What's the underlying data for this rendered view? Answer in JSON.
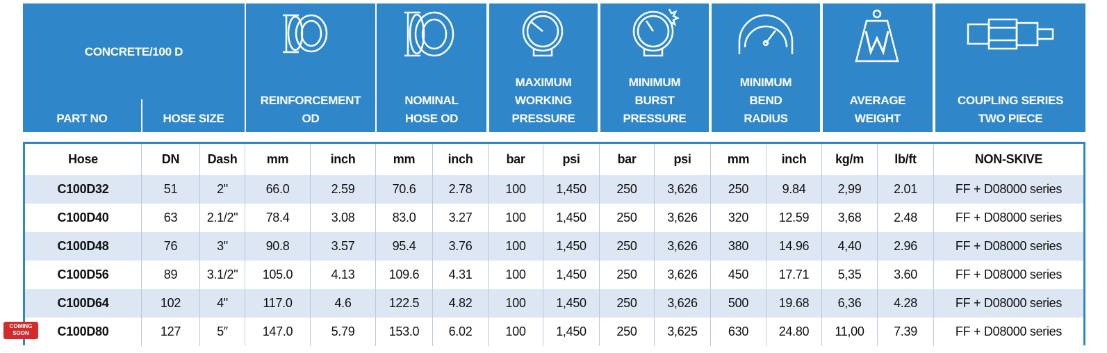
{
  "header": {
    "title": "CONCRETE/100 D",
    "columns": [
      [
        "PART NO"
      ],
      [
        "HOSE SIZE"
      ],
      [
        "REINFORCEMENT",
        "OD"
      ],
      [
        "NOMINAL",
        "HOSE OD"
      ],
      [
        "MAXIMUM",
        "WORKING",
        "PRESSURE"
      ],
      [
        "MINIMUM",
        "BURST",
        "PRESSURE"
      ],
      [
        "MINIMUM",
        "BEND",
        "RADIUS"
      ],
      [
        "AVERAGE",
        "WEIGHT"
      ],
      [
        "COUPLING SERIES",
        "TWO PIECE"
      ]
    ]
  },
  "table": {
    "units": [
      "Hose",
      "DN",
      "Dash",
      "mm",
      "inch",
      "mm",
      "inch",
      "bar",
      "psi",
      "bar",
      "psi",
      "mm",
      "inch",
      "kg/m",
      "lb/ft",
      "NON-SKIVE"
    ],
    "rows": [
      [
        "C100D32",
        "51",
        "2\"",
        "66.0",
        "2.59",
        "70.6",
        "2.78",
        "100",
        "1,450",
        "250",
        "3,626",
        "250",
        "9.84",
        "2,99",
        "2.01",
        "FF + D08000 series"
      ],
      [
        "C100D40",
        "63",
        "2.1/2\"",
        "78.4",
        "3.08",
        "83.0",
        "3.27",
        "100",
        "1,450",
        "250",
        "3,626",
        "320",
        "12.59",
        "3,68",
        "2.48",
        "FF + D08000 series"
      ],
      [
        "C100D48",
        "76",
        "3\"",
        "90.8",
        "3.57",
        "95.4",
        "3.76",
        "100",
        "1,450",
        "250",
        "3,626",
        "380",
        "14.96",
        "4,40",
        "2.96",
        "FF + D08000 series"
      ],
      [
        "C100D56",
        "89",
        "3.1/2\"",
        "105.0",
        "4.13",
        "109.6",
        "4.31",
        "100",
        "1,450",
        "250",
        "3,626",
        "450",
        "17.71",
        "5,35",
        "3.60",
        "FF + D08000 series"
      ],
      [
        "C100D64",
        "102",
        "4\"",
        "117.0",
        "4.6",
        "122.5",
        "4.82",
        "100",
        "1,450",
        "250",
        "3,626",
        "500",
        "19.68",
        "6,36",
        "4.28",
        "FF + D08000 series"
      ],
      [
        "C100D80",
        "127",
        "5″",
        "147.0",
        "5.79",
        "153.0",
        "6.02",
        "100",
        "1,450",
        "250",
        "3,625",
        "630",
        "24.80",
        "11,00",
        "7.39",
        "FF + D08000 series"
      ]
    ]
  },
  "badge": [
    "COMING",
    "SOON"
  ]
}
